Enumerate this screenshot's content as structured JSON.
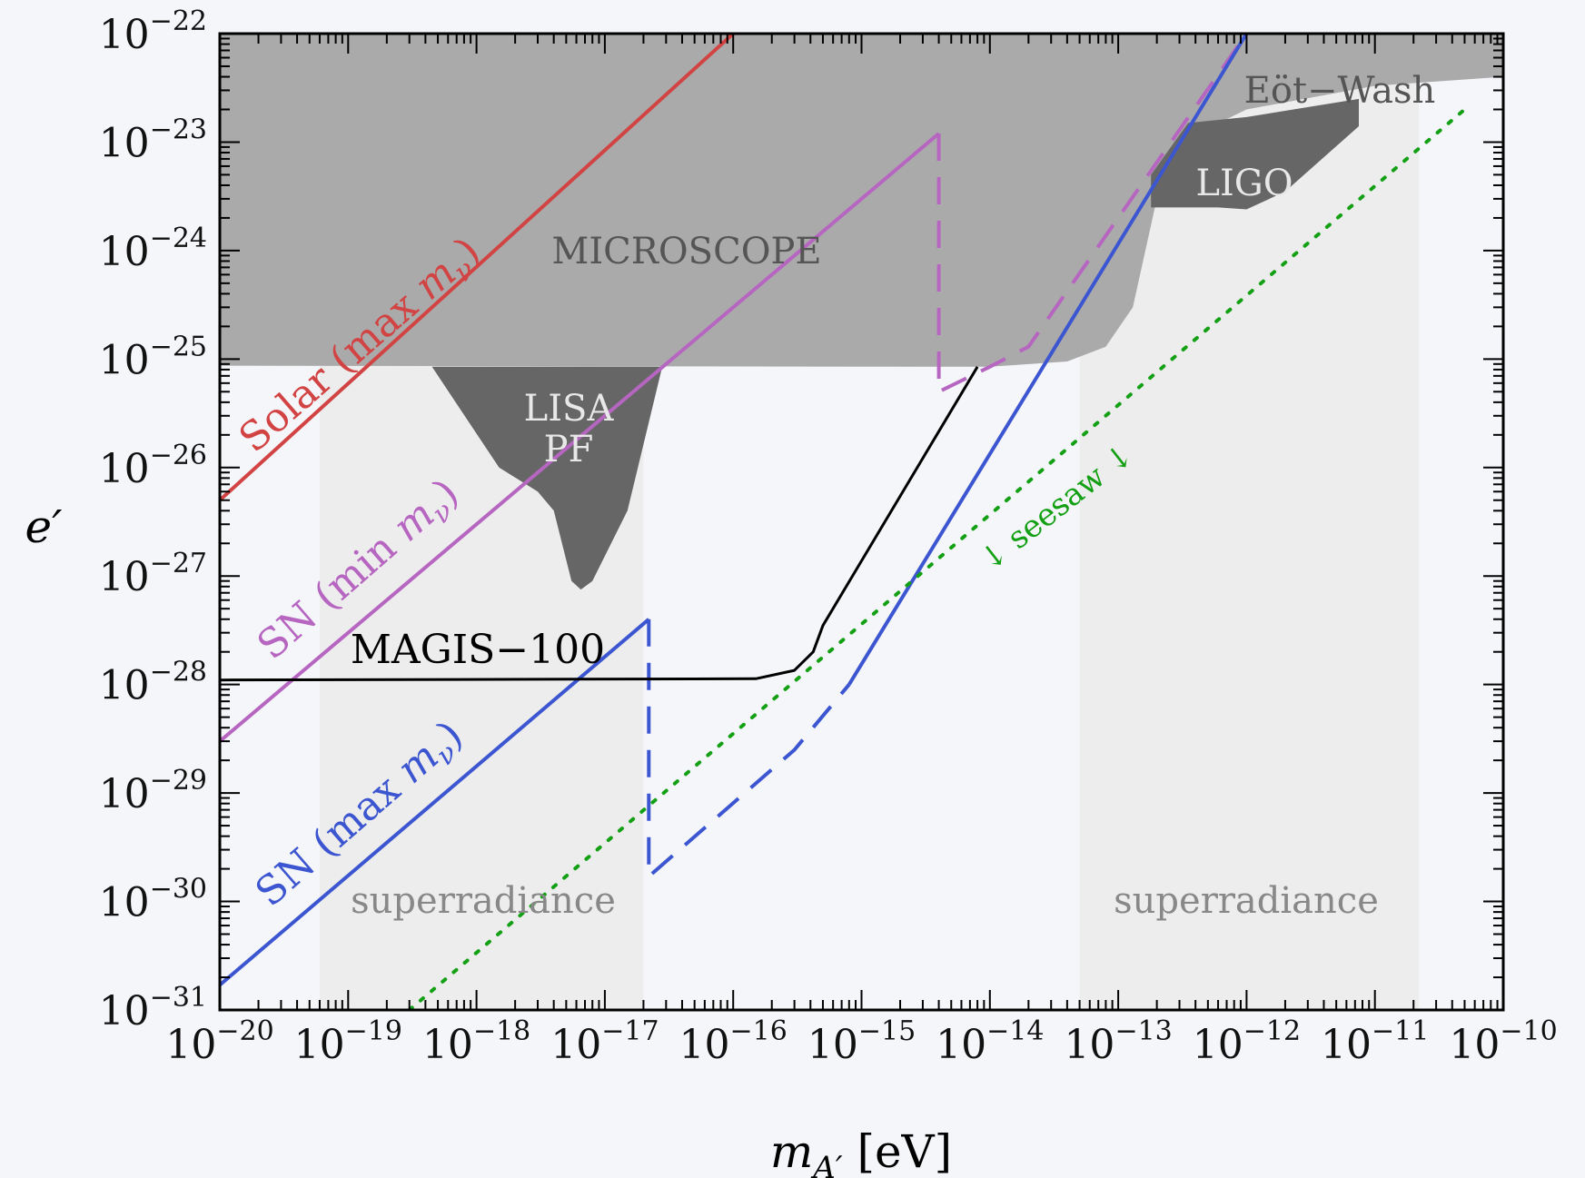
{
  "chart_data": {
    "type": "line",
    "xscale": "log",
    "yscale": "log",
    "xlim": [
      1e-20,
      1e-10
    ],
    "ylim": [
      1e-31,
      1e-22
    ],
    "xlabel": {
      "main": "m",
      "sub": "A′",
      "unit": " [eV]"
    },
    "ylabel": "e′",
    "x_ticks": [
      "10",
      "10",
      "10",
      "10",
      "10",
      "10",
      "10",
      "10",
      "10",
      "10",
      "10"
    ],
    "x_tick_exponents": [
      "−20",
      "−19",
      "−18",
      "−17",
      "−16",
      "−15",
      "−14",
      "−13",
      "−12",
      "−11",
      "−10"
    ],
    "y_ticks": [
      "10",
      "10",
      "10",
      "10",
      "10",
      "10",
      "10",
      "10",
      "10",
      "10"
    ],
    "y_tick_exponents": [
      "−22",
      "−23",
      "−24",
      "−25",
      "−26",
      "−27",
      "−28",
      "−29",
      "−30",
      "−31"
    ],
    "colors": {
      "excluded": "#aaaaaa",
      "excluded_dark": "#666666",
      "superradiance": "#ededed",
      "solar": "#d24343",
      "sn_min": "#b666c0",
      "sn_max": "#3c55d0",
      "magis": "#000000",
      "seesaw": "#14a014"
    },
    "regions": [
      {
        "name": "MICROSCOPE",
        "label": "MICROSCOPE",
        "points": [
          [
            1e-20,
            8.7e-26
          ],
          [
            3e-15,
            8.5e-26
          ],
          [
            1e-14,
            8.5e-26
          ],
          [
            4e-14,
            9.5e-26
          ],
          [
            8e-14,
            1.3e-25
          ],
          [
            1.3e-13,
            3e-25
          ],
          [
            2e-13,
            3e-24
          ],
          [
            3e-13,
            1e-23
          ],
          [
            1e-12,
            2e-23
          ],
          [
            1e-11,
            3.3e-23
          ],
          [
            1e-10,
            4e-23
          ],
          [
            1e-10,
            1e-22
          ],
          [
            1e-20,
            1e-22
          ]
        ]
      },
      {
        "name": "Eöt-Wash",
        "label": "Eöt−Wash",
        "points": []
      },
      {
        "name": "LIGO",
        "label": "LIGO",
        "points": [
          [
            1.8e-13,
            5e-24
          ],
          [
            3.5e-13,
            1.5e-23
          ],
          [
            1e-12,
            1.7e-23
          ],
          [
            7.5e-12,
            2.5e-23
          ],
          [
            7.5e-12,
            1.4e-23
          ],
          [
            2e-12,
            3.5e-24
          ],
          [
            1e-12,
            2.4e-24
          ],
          [
            6e-13,
            2.5e-24
          ],
          [
            1.8e-13,
            2.5e-24
          ]
        ]
      },
      {
        "name": "LISA PF",
        "labels": [
          "LISA",
          "PF"
        ],
        "points": [
          [
            4.5e-19,
            8.5e-26
          ],
          [
            2.8e-17,
            8.5e-26
          ],
          [
            1.5e-17,
            4e-27
          ],
          [
            8e-18,
            9e-28
          ],
          [
            6.5e-18,
            7.5e-28
          ],
          [
            5.5e-18,
            9e-28
          ],
          [
            4e-18,
            4e-27
          ],
          [
            3e-18,
            6e-27
          ],
          [
            1.5e-18,
            1e-26
          ]
        ]
      },
      {
        "name": "superradiance-left",
        "label": "superradiance",
        "x": [
          6e-20,
          2e-17
        ]
      },
      {
        "name": "superradiance-right",
        "label": "superradiance",
        "x": [
          5e-14,
          2.2e-11
        ]
      }
    ],
    "series": [
      {
        "name": "Solar (max mν)",
        "label_prefix": "Solar (max ",
        "label_math": "m",
        "label_sub": "ν",
        "label_suffix": ")",
        "style": "solid",
        "points": [
          [
            1e-20,
            5e-27
          ],
          [
            1e-16,
            1e-22
          ]
        ]
      },
      {
        "name": "SN (min mν)",
        "label_prefix": "SN (min ",
        "label_math": "m",
        "label_sub": "ν",
        "label_suffix": ")",
        "style": "solid",
        "points": [
          [
            1e-20,
            3e-29
          ],
          [
            4e-15,
            1.2e-23
          ]
        ]
      },
      {
        "name": "SN (min mν) dashed",
        "style": "dashed",
        "points": [
          [
            4e-15,
            1.2e-23
          ],
          [
            4e-15,
            5e-26
          ],
          [
            1e-14,
            8.5e-26
          ],
          [
            2e-14,
            1.3e-25
          ],
          [
            1e-12,
            1e-22
          ]
        ]
      },
      {
        "name": "SN (max mν)",
        "label_prefix": "SN (max ",
        "label_math": "m",
        "label_sub": "ν",
        "label_suffix": ")",
        "style": "solid",
        "points": [
          [
            1e-20,
            1.7e-31
          ],
          [
            2.2e-17,
            4e-28
          ]
        ]
      },
      {
        "name": "SN (max mν) dashed",
        "style": "dashed",
        "points": [
          [
            2.2e-17,
            4e-28
          ],
          [
            2.2e-17,
            1.7e-30
          ],
          [
            3e-16,
            2.5e-29
          ],
          [
            8e-16,
            1e-28
          ]
        ]
      },
      {
        "name": "SN (max mν) high",
        "style": "solid",
        "points": [
          [
            8e-16,
            1e-28
          ],
          [
            1e-12,
            1e-22
          ]
        ]
      },
      {
        "name": "MAGIS-100",
        "label": "MAGIS−100",
        "style": "solid",
        "points": [
          [
            1e-20,
            1.1e-28
          ],
          [
            1.5e-16,
            1.13e-28
          ],
          [
            3e-16,
            1.35e-28
          ],
          [
            4.2e-16,
            2e-28
          ],
          [
            5e-16,
            3.5e-28
          ],
          [
            8e-15,
            8.5e-26
          ]
        ]
      },
      {
        "name": "seesaw",
        "label": "↓ seesaw ↓",
        "style": "dotted",
        "points": [
          [
            3e-19,
            1e-31
          ],
          [
            5e-11,
            2e-23
          ]
        ]
      }
    ]
  }
}
